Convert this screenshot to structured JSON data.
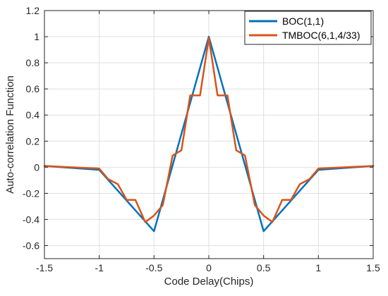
{
  "chart_data": {
    "type": "line",
    "title": "",
    "xlabel": "Code Delay(Chips)",
    "ylabel": "Auto-correlation Function",
    "xlim": [
      -1.5,
      1.5
    ],
    "ylim": [
      -0.7,
      1.2
    ],
    "xticks": [
      -1.5,
      -1,
      -0.5,
      0,
      0.5,
      1,
      1.5
    ],
    "xtick_labels": [
      "-1.5",
      "-1",
      "-0.5",
      "0",
      "0.5",
      "1",
      "1.5"
    ],
    "yticks": [
      -0.6,
      -0.4,
      -0.2,
      0,
      0.2,
      0.4,
      0.6,
      0.8,
      1,
      1.2
    ],
    "ytick_labels": [
      "-0.6",
      "-0.4",
      "-0.2",
      "0",
      "0.2",
      "0.4",
      "0.6",
      "0.8",
      "1",
      "1.2"
    ],
    "grid": true,
    "legend_position": "top-right",
    "series": [
      {
        "name": "BOC(1,1)",
        "color": "#0072BD",
        "x": [
          -1.5,
          -1,
          -0.5,
          0,
          0.5,
          1,
          1.5
        ],
        "y": [
          0.01,
          -0.02,
          -0.49,
          1.0,
          -0.49,
          -0.02,
          0.01
        ]
      },
      {
        "name": "TMBOC(6,1,4/33)",
        "color": "#D95319",
        "x": [
          -1.5,
          -1.0,
          -0.92,
          -0.83,
          -0.75,
          -0.67,
          -0.58,
          -0.5,
          -0.42,
          -0.33,
          -0.25,
          -0.17,
          -0.08,
          0.0,
          0.08,
          0.17,
          0.25,
          0.33,
          0.42,
          0.5,
          0.58,
          0.67,
          0.75,
          0.83,
          0.92,
          1.0,
          1.5
        ],
        "y": [
          0.01,
          -0.01,
          -0.09,
          -0.13,
          -0.25,
          -0.25,
          -0.42,
          -0.37,
          -0.29,
          0.09,
          0.13,
          0.55,
          0.55,
          0.99,
          0.55,
          0.55,
          0.13,
          0.09,
          -0.29,
          -0.37,
          -0.42,
          -0.25,
          -0.25,
          -0.13,
          -0.09,
          -0.01,
          0.01
        ]
      }
    ]
  }
}
